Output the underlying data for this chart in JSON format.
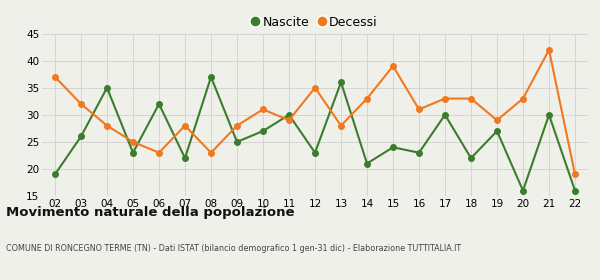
{
  "years": [
    "02",
    "03",
    "04",
    "05",
    "06",
    "07",
    "08",
    "09",
    "10",
    "11",
    "12",
    "13",
    "14",
    "15",
    "16",
    "17",
    "18",
    "19",
    "20",
    "21",
    "22"
  ],
  "nascite": [
    19,
    26,
    35,
    23,
    32,
    22,
    37,
    25,
    27,
    30,
    23,
    36,
    21,
    24,
    23,
    30,
    22,
    27,
    16,
    30,
    16
  ],
  "decessi": [
    37,
    32,
    28,
    25,
    23,
    28,
    23,
    28,
    31,
    29,
    35,
    28,
    33,
    39,
    31,
    33,
    33,
    29,
    33,
    42,
    19
  ],
  "nascite_color": "#3a7d2c",
  "decessi_color": "#f07820",
  "ylim": [
    15,
    45
  ],
  "yticks": [
    15,
    20,
    25,
    30,
    35,
    40,
    45
  ],
  "background_color": "#f0f0eb",
  "grid_color": "#d0d0d0",
  "title": "Movimento naturale della popolazione",
  "subtitle": "COMUNE DI RONCEGNO TERME (TN) - Dati ISTAT (bilancio demografico 1 gen-31 dic) - Elaborazione TUTTITALIA.IT",
  "legend_nascite": "Nascite",
  "legend_decessi": "Decessi",
  "marker_size": 4,
  "line_width": 1.5
}
